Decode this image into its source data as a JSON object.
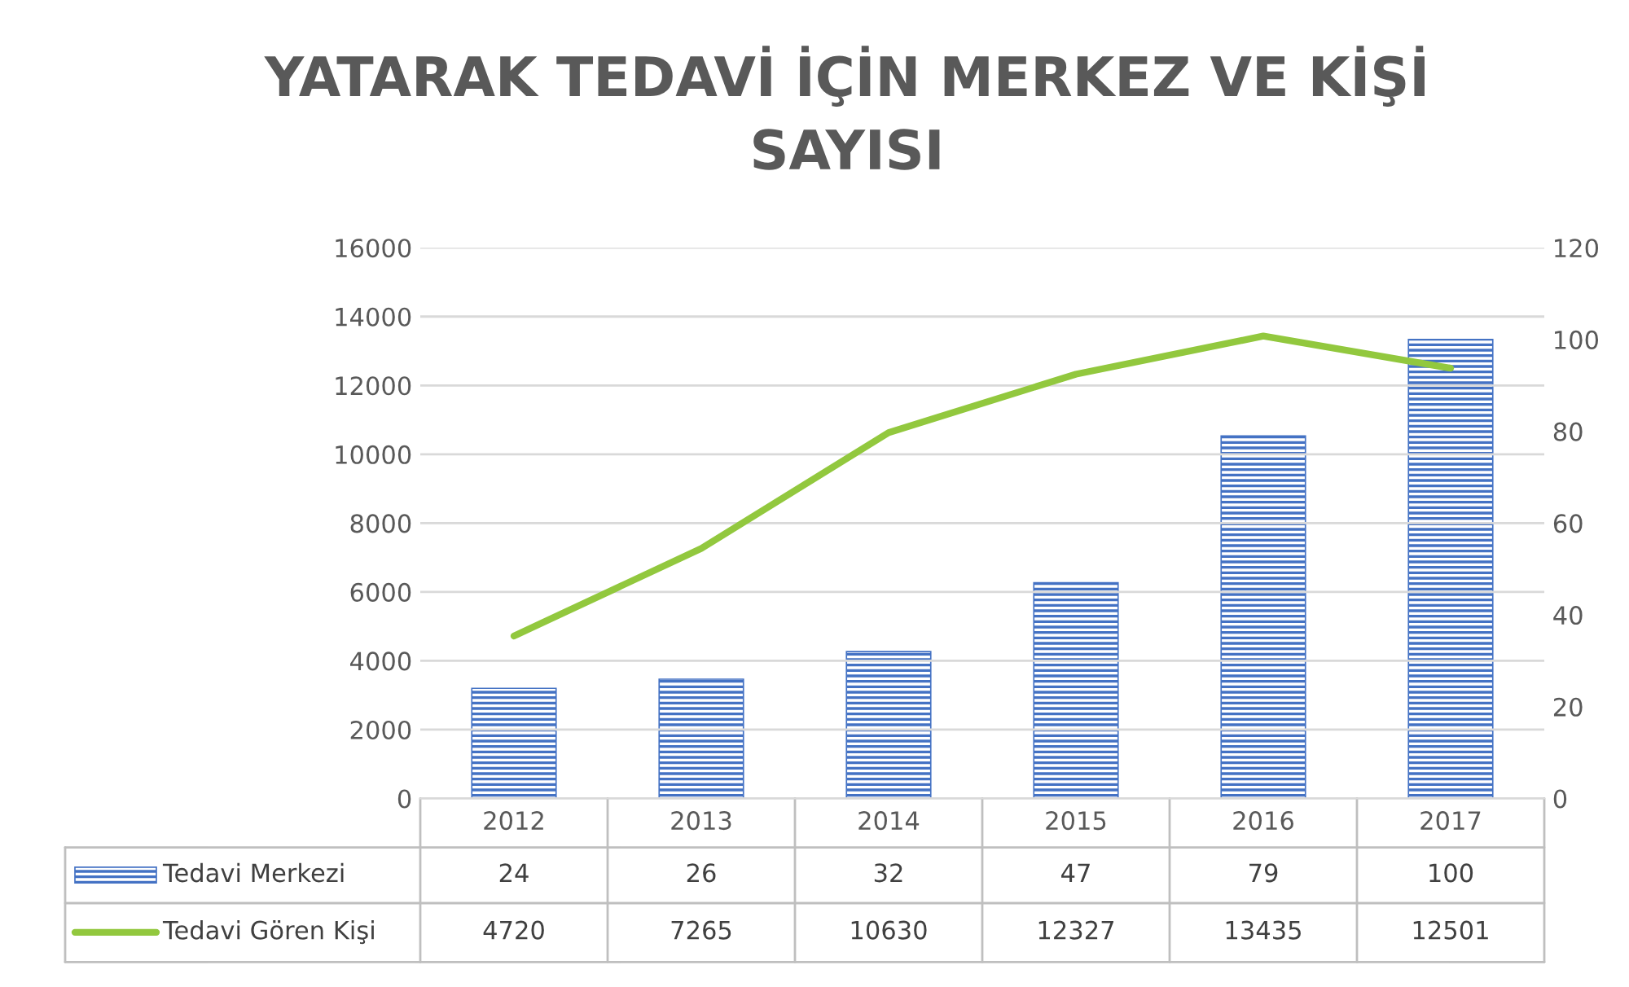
{
  "chart_data": {
    "type": "bar",
    "title": "YATARAK TEDAVİ İÇİN MERKEZ VE KİŞİ\nSAYISI",
    "categories": [
      "2012",
      "2013",
      "2014",
      "2015",
      "2016",
      "2017"
    ],
    "series": [
      {
        "name": "Tedavi Merkezi",
        "axis": "y2",
        "color": "#4472c4",
        "values": [
          24,
          26,
          32,
          47,
          79,
          100
        ]
      },
      {
        "name": "Tedavi Gören Kişi",
        "type": "line",
        "color": "#92c83e",
        "values": [
          4720,
          7265,
          10630,
          12327,
          13435,
          12501
        ]
      }
    ],
    "ylim": [
      0,
      16000
    ],
    "yticks": [
      0,
      2000,
      4000,
      6000,
      8000,
      10000,
      12000,
      14000,
      16000
    ],
    "y2lim": [
      0,
      120
    ],
    "y2ticks": [
      0,
      20,
      40,
      60,
      80,
      100,
      120
    ],
    "grid": "y",
    "legend": "bottom",
    "data_labels": true,
    "marker": "none",
    "line_style": "solid"
  }
}
